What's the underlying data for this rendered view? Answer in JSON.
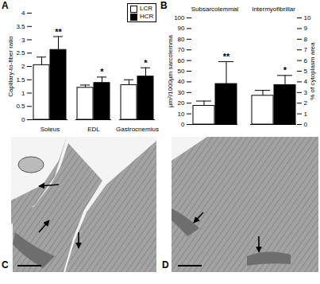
{
  "chart_data": [
    {
      "panel": "A",
      "type": "bar",
      "y_label": "Capillary-to-fiber ratio",
      "categories": [
        "Soleus",
        "EDL",
        "Gastrocnemius"
      ],
      "series": [
        {
          "name": "LCR",
          "color": "#ffffff",
          "values": [
            2.05,
            1.2,
            1.3
          ],
          "errors": [
            0.3,
            0.1,
            0.2
          ]
        },
        {
          "name": "HCR",
          "color": "#000000",
          "values": [
            2.62,
            1.38,
            1.62
          ],
          "errors": [
            0.5,
            0.22,
            0.33
          ],
          "annotations": [
            "**",
            "*",
            "*"
          ]
        }
      ],
      "ylim": [
        0,
        4
      ],
      "yticks": [
        0,
        0.5,
        1,
        1.5,
        2,
        2.5,
        3,
        3.5,
        4
      ],
      "legend": "top-right"
    },
    {
      "panel": "B",
      "type": "bar",
      "y_label": "μm²/1000μm sarcolemma",
      "y2_label": "% of cytoplasm area",
      "categories": [
        "Subsarcolemmal",
        "Intermyofibrillar"
      ],
      "series": [
        {
          "name": "LCR",
          "color": "#ffffff",
          "values": [
            17.5,
            null
          ],
          "errors": [
            4.5,
            null
          ]
        },
        {
          "name": "HCR",
          "color": "#000000",
          "values": [
            38,
            null
          ],
          "errors": [
            21,
            null
          ],
          "annotations": [
            "**",
            null
          ]
        },
        {
          "name": "LCR",
          "color": "#ffffff",
          "axis": "y2",
          "values": [
            null,
            2.7
          ],
          "errors": [
            null,
            0.5
          ]
        },
        {
          "name": "HCR",
          "color": "#000000",
          "axis": "y2",
          "values": [
            null,
            3.7
          ],
          "errors": [
            null,
            0.9
          ],
          "annotations": [
            null,
            "*"
          ]
        }
      ],
      "ylim": [
        0,
        100
      ],
      "yticks": [
        0,
        10,
        20,
        30,
        40,
        50,
        60,
        70,
        80,
        90,
        100
      ],
      "y2lim": [
        0,
        10
      ],
      "y2ticks": [
        0,
        1,
        2,
        3,
        4,
        5,
        6,
        7,
        8,
        9,
        10
      ]
    }
  ],
  "images": [
    {
      "panel": "C"
    },
    {
      "panel": "D"
    }
  ]
}
